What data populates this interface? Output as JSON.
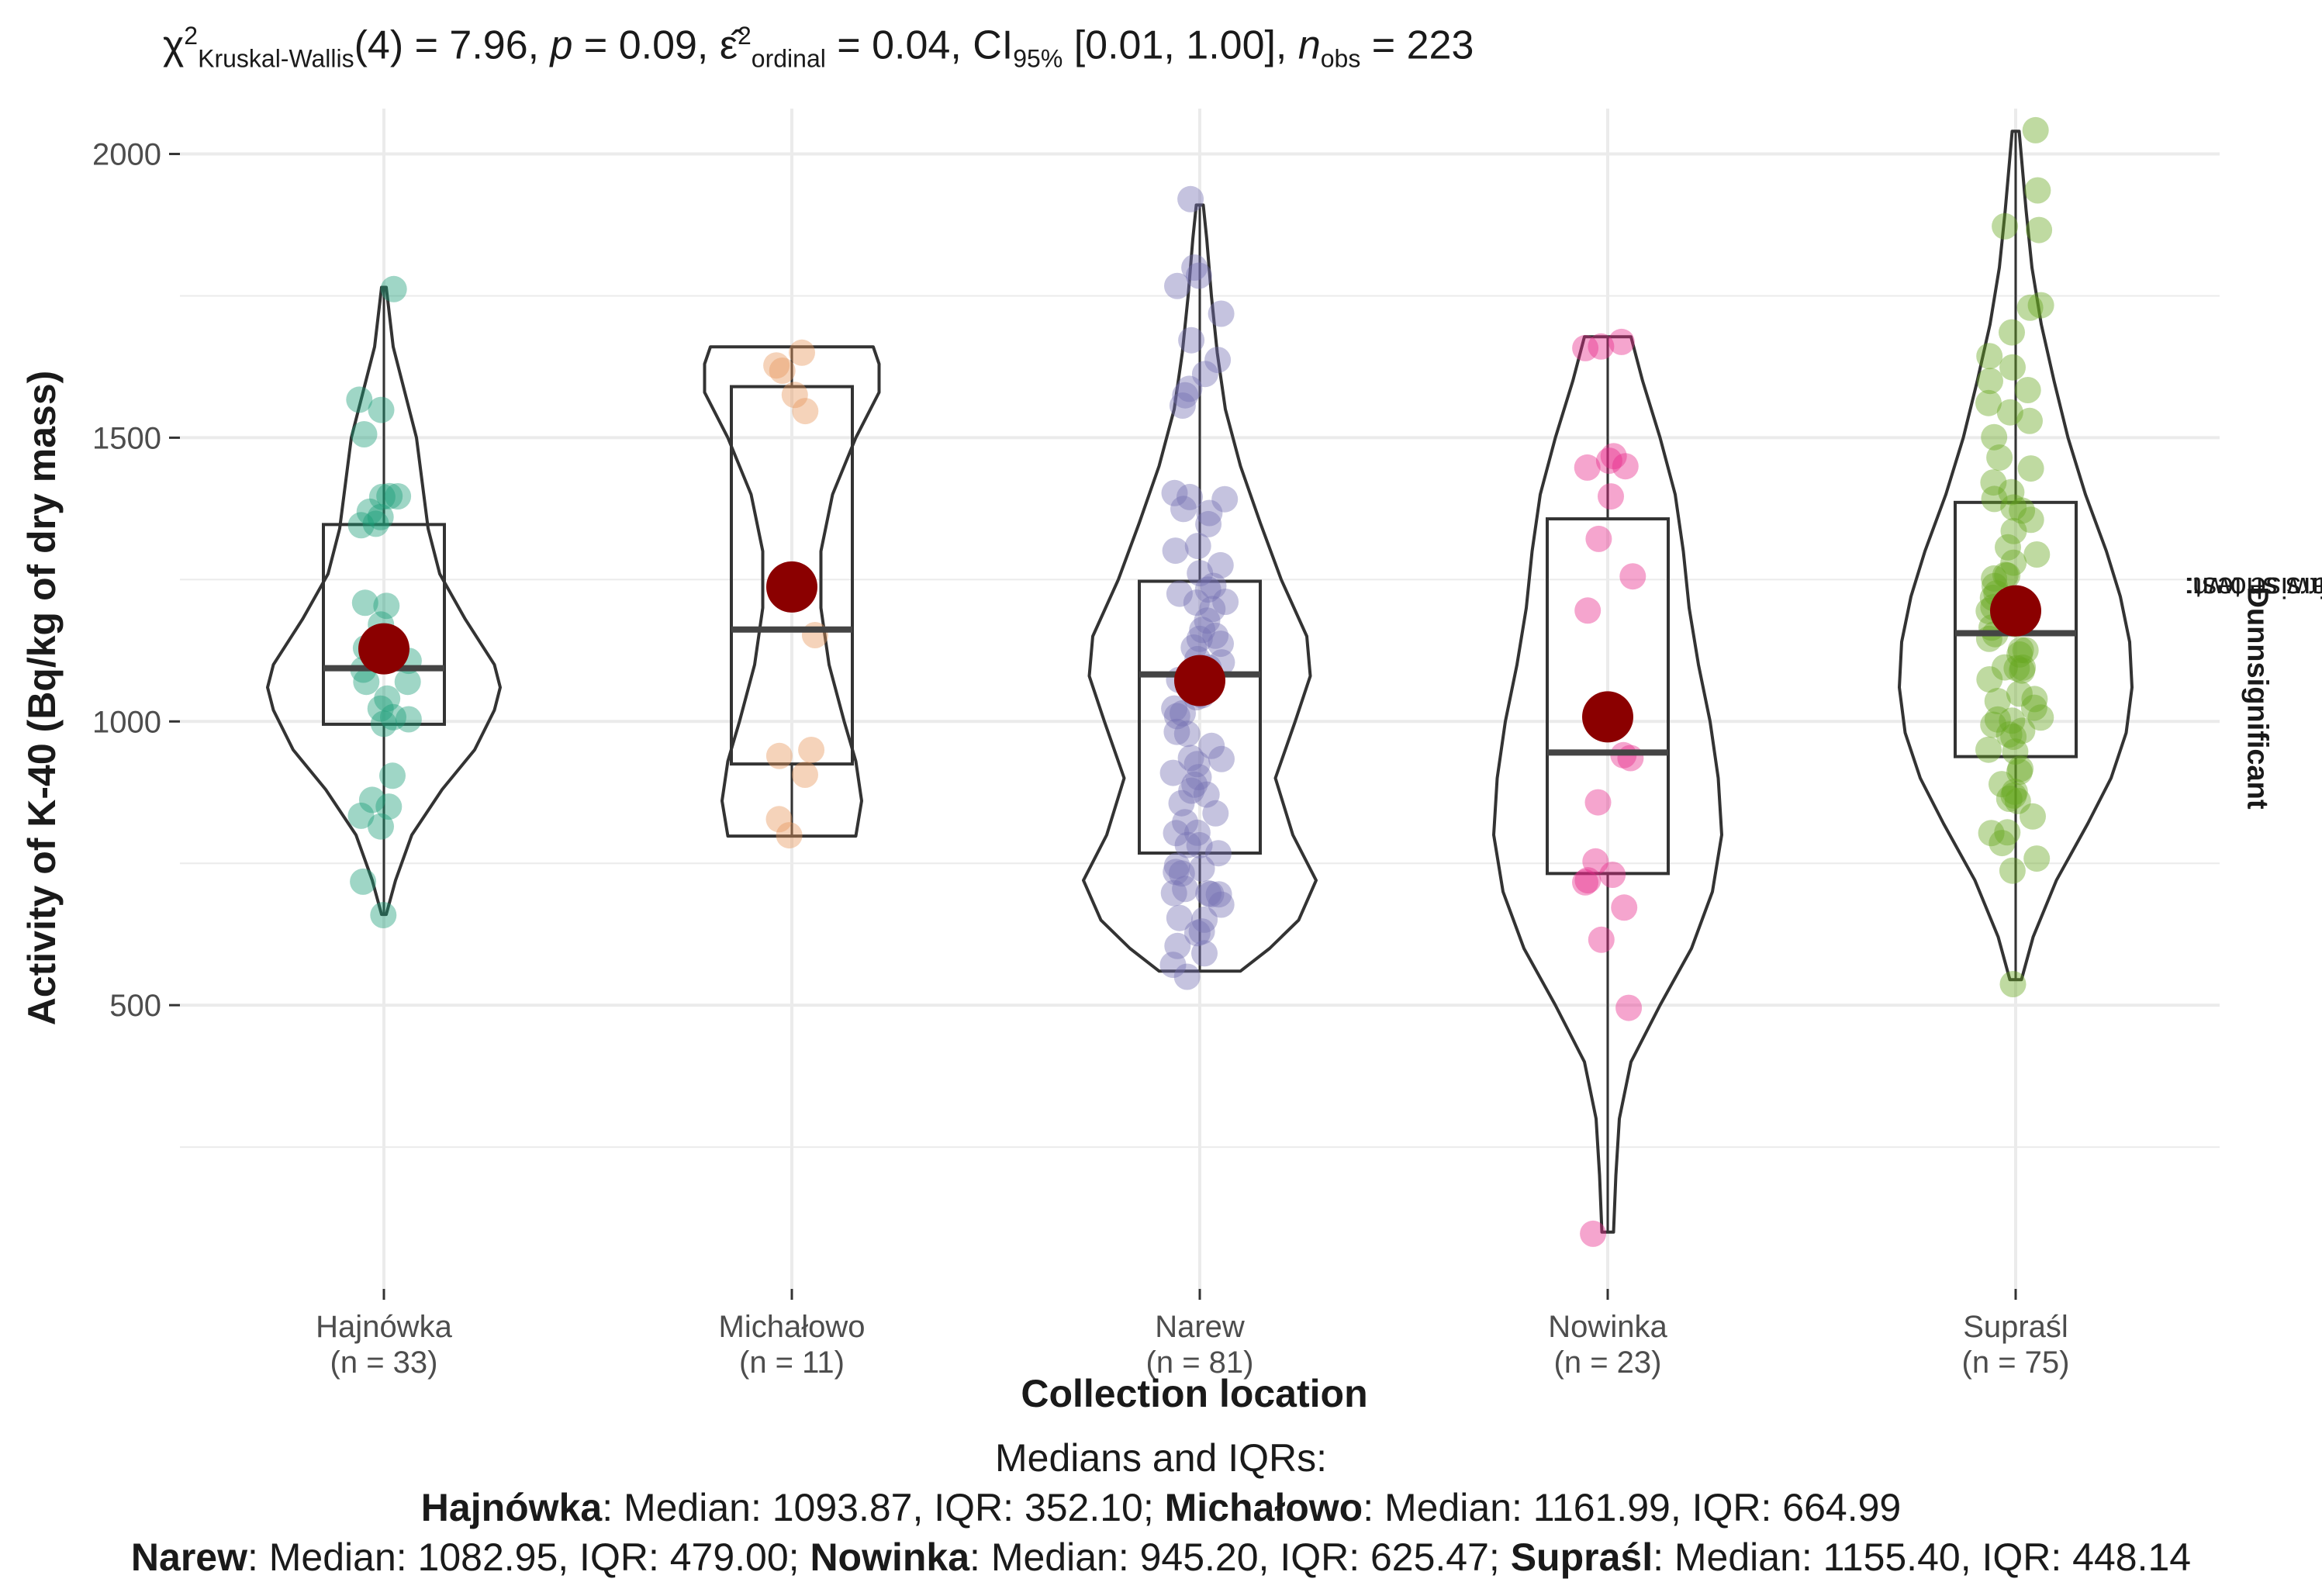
{
  "subtitle": {
    "chi": "χ",
    "chi_sup": "2",
    "chi_sub": "Kruskal-Wallis",
    "df": "(4) = 7.96, ",
    "p_sym": "p",
    "p_val": " = 0.09, ",
    "eps_sym": "ε̂",
    "eps_sup": "2",
    "eps_sub": "ordinal",
    "eps_val": " = 0.04, CI",
    "ci_sub": "95%",
    "ci_val": " [0.01, 1.00], ",
    "n_sym": "n",
    "n_sub": "obs",
    "n_val": " = 223"
  },
  "axes": {
    "xlabel": "Collection location",
    "ylabel": "Activity of K-40 (Bq/kg of dry mass)",
    "right_label_plain1": "Pairwise test: ",
    "right_label_bold1": "Dunn",
    "right_label_plain2": ", Bars shown: ",
    "right_label_bold2": "significant"
  },
  "caption": {
    "line1": "Medians and IQRs:",
    "hajnowka_name": "Hajnówka",
    "hajnowka_stats": ": Median: 1093.87, IQR: 352.10; ",
    "michalowo_name": "Michałowo",
    "michalowo_stats": ": Median: 1161.99, IQR: 664.99",
    "narew_name": "Narew",
    "narew_stats": ": Median: 1082.95, IQR: 479.00; ",
    "nowinka_name": "Nowinka",
    "nowinka_stats": ": Median: 945.20, IQR: 625.47; ",
    "suprasl_name": "Supraśl",
    "suprasl_stats": ": Median: 1155.40, IQR: 448.14"
  },
  "chart_data": {
    "type": "violin-box-scatter",
    "ylim": [
      0,
      2080
    ],
    "yticks": [
      500,
      1000,
      1500,
      2000
    ],
    "grid": true,
    "mean_color": "#8B0000",
    "groups": [
      {
        "name": "Hajnówka",
        "label": "(n = 33)",
        "n": 33,
        "color": "#1B9E77",
        "median": 1093.87,
        "q1": 995,
        "q3": 1347,
        "min": 660,
        "max": 1765,
        "mean": 1128,
        "violin": [
          [
            660,
            0.02
          ],
          [
            720,
            0.1
          ],
          [
            800,
            0.24
          ],
          [
            880,
            0.5
          ],
          [
            950,
            0.78
          ],
          [
            1020,
            0.95
          ],
          [
            1060,
            1.0
          ],
          [
            1100,
            0.95
          ],
          [
            1180,
            0.7
          ],
          [
            1260,
            0.48
          ],
          [
            1340,
            0.38
          ],
          [
            1420,
            0.33
          ],
          [
            1500,
            0.28
          ],
          [
            1580,
            0.18
          ],
          [
            1660,
            0.08
          ],
          [
            1765,
            0.02
          ]
        ],
        "points": [
          660,
          712,
          815,
          842,
          848,
          868,
          895,
          990,
          1000,
          1040,
          1060,
          1080,
          1090,
          1100,
          1110,
          1120,
          1140,
          1165,
          1200,
          1215,
          1345,
          1355,
          1378,
          1390,
          1395,
          1400,
          1500,
          1540,
          1565,
          1765,
          1000,
          1360,
          1030
        ]
      },
      {
        "name": "Michałowo",
        "label": "(n = 11)",
        "n": 11,
        "color": "#E6955B",
        "median": 1161.99,
        "q1": 925,
        "q3": 1590,
        "min": 798,
        "max": 1660,
        "mean": 1237,
        "violin": [
          [
            798,
            0.55
          ],
          [
            860,
            0.6
          ],
          [
            930,
            0.55
          ],
          [
            1000,
            0.45
          ],
          [
            1100,
            0.32
          ],
          [
            1200,
            0.25
          ],
          [
            1300,
            0.25
          ],
          [
            1400,
            0.35
          ],
          [
            1500,
            0.55
          ],
          [
            1580,
            0.75
          ],
          [
            1630,
            0.75
          ],
          [
            1660,
            0.7
          ]
        ],
        "points": [
          798,
          822,
          898,
          945,
          960,
          1160,
          1550,
          1565,
          1615,
          1625,
          1655
        ]
      },
      {
        "name": "Narew",
        "label": "(n = 81)",
        "n": 81,
        "color": "#7570B3",
        "median": 1082.95,
        "q1": 768,
        "q3": 1247,
        "min": 560,
        "max": 1910,
        "mean": 1072,
        "violin": [
          [
            560,
            0.35
          ],
          [
            600,
            0.6
          ],
          [
            650,
            0.85
          ],
          [
            720,
            1.0
          ],
          [
            800,
            0.8
          ],
          [
            900,
            0.65
          ],
          [
            1000,
            0.82
          ],
          [
            1080,
            0.95
          ],
          [
            1150,
            0.92
          ],
          [
            1250,
            0.7
          ],
          [
            1350,
            0.52
          ],
          [
            1450,
            0.35
          ],
          [
            1550,
            0.22
          ],
          [
            1650,
            0.15
          ],
          [
            1750,
            0.1
          ],
          [
            1850,
            0.06
          ],
          [
            1910,
            0.03
          ]
        ],
        "points": [
          560,
          568,
          590,
          615,
          635,
          650,
          660,
          672,
          690,
          700,
          705,
          712,
          722,
          735,
          748,
          760,
          772,
          782,
          800,
          818,
          830,
          845,
          862,
          880,
          900,
          915,
          930,
          945,
          960,
          975,
          990,
          1000,
          1010,
          1025,
          1040,
          1055,
          1070,
          1082,
          1095,
          1108,
          1120,
          1135,
          1150,
          1160,
          1172,
          1185,
          1200,
          1212,
          1230,
          1245,
          1260,
          1280,
          1298,
          1320,
          1340,
          1360,
          1375,
          1385,
          1392,
          1400,
          1560,
          1580,
          1595,
          1610,
          1630,
          1670,
          1720,
          1760,
          1780,
          1800,
          1910,
          740,
          805,
          925,
          1045,
          1120,
          1230,
          685,
          625,
          872,
          1198
        ]
      },
      {
        "name": "Nowinka",
        "label": "(n = 23)",
        "n": 23,
        "color": "#E7298A",
        "median": 945.2,
        "q1": 732,
        "q3": 1357,
        "min": 100,
        "max": 1678,
        "mean": 1008,
        "violin": [
          [
            100,
            0.05
          ],
          [
            200,
            0.07
          ],
          [
            300,
            0.1
          ],
          [
            400,
            0.2
          ],
          [
            500,
            0.45
          ],
          [
            600,
            0.72
          ],
          [
            700,
            0.9
          ],
          [
            800,
            0.98
          ],
          [
            900,
            0.95
          ],
          [
            1000,
            0.88
          ],
          [
            1100,
            0.78
          ],
          [
            1200,
            0.7
          ],
          [
            1300,
            0.65
          ],
          [
            1400,
            0.58
          ],
          [
            1500,
            0.45
          ],
          [
            1600,
            0.3
          ],
          [
            1678,
            0.2
          ]
        ],
        "points": [
          100,
          505,
          625,
          670,
          710,
          725,
          740,
          750,
          850,
          938,
          945,
          1010,
          1200,
          1258,
          1318,
          1398,
          1445,
          1455,
          1460,
          1465,
          1650,
          1670,
          1678
        ]
      },
      {
        "name": "Supraśl",
        "label": "(n = 75)",
        "n": 75,
        "color": "#66A61E",
        "median": 1155.4,
        "q1": 938,
        "q3": 1386,
        "min": 545,
        "max": 2040,
        "mean": 1195,
        "violin": [
          [
            545,
            0.05
          ],
          [
            620,
            0.15
          ],
          [
            720,
            0.35
          ],
          [
            820,
            0.62
          ],
          [
            900,
            0.82
          ],
          [
            980,
            0.95
          ],
          [
            1060,
            1.0
          ],
          [
            1140,
            0.98
          ],
          [
            1220,
            0.9
          ],
          [
            1300,
            0.78
          ],
          [
            1400,
            0.6
          ],
          [
            1500,
            0.45
          ],
          [
            1600,
            0.33
          ],
          [
            1700,
            0.22
          ],
          [
            1800,
            0.14
          ],
          [
            1900,
            0.09
          ],
          [
            2040,
            0.03
          ]
        ],
        "points": [
          545,
          728,
          755,
          780,
          800,
          815,
          835,
          850,
          862,
          872,
          890,
          905,
          920,
          938,
          950,
          962,
          975,
          990,
          1005,
          1015,
          1025,
          1035,
          1045,
          1058,
          1070,
          1080,
          1092,
          1105,
          1118,
          1130,
          1140,
          1150,
          1160,
          1172,
          1185,
          1198,
          1210,
          1222,
          1235,
          1250,
          1265,
          1280,
          1298,
          1312,
          1330,
          1350,
          1370,
          1385,
          1392,
          1398,
          1450,
          1470,
          1500,
          1520,
          1540,
          1560,
          1580,
          1600,
          1625,
          1650,
          1690,
          1720,
          1740,
          1860,
          1870,
          1940,
          2040,
          870,
          1010,
          1120,
          1260,
          1420,
          968,
          1088,
          1205
        ]
      }
    ]
  }
}
